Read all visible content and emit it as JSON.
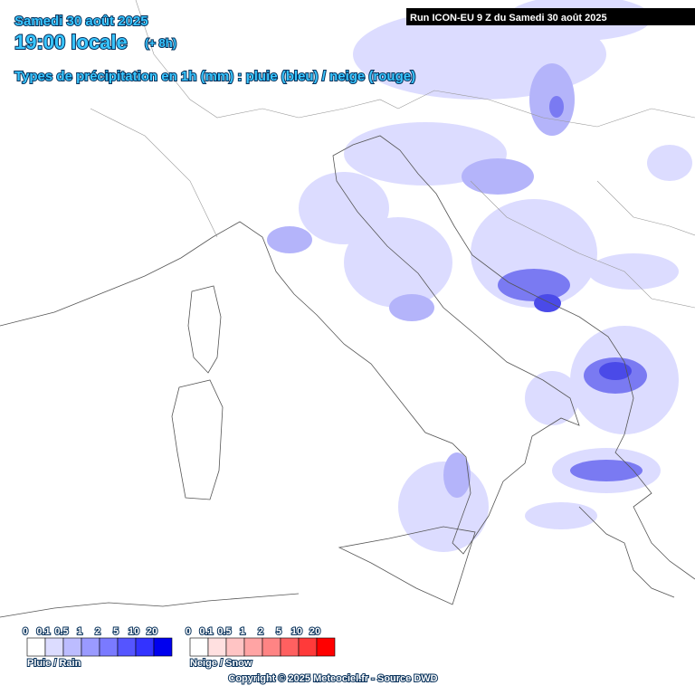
{
  "header": {
    "date": "Samedi 30 août 2025",
    "time": "19:00 locale",
    "offset": "(+ 8h)",
    "subtitle": "Types de précipitation en 1h (mm) : pluie (bleu) / neige (rouge)",
    "run": "Run ICON-EU 9 Z du Samedi 30 août 2025"
  },
  "legend": {
    "rain": {
      "label": "Pluie / Rain",
      "ticks": [
        0,
        0.1,
        0.5,
        1,
        2,
        5,
        10,
        20
      ],
      "colors": [
        "#ffffff",
        "#dcdcff",
        "#bcbcff",
        "#9a9aff",
        "#7a7aff",
        "#5555ff",
        "#3333ff",
        "#0000ee"
      ]
    },
    "snow": {
      "label": "Neige / Snow",
      "ticks": [
        0,
        0.1,
        0.5,
        1,
        2,
        5,
        10,
        20
      ],
      "colors": [
        "#ffffff",
        "#ffe0e0",
        "#ffc4c4",
        "#ffa4a4",
        "#ff8484",
        "#ff6060",
        "#ff3a3a",
        "#ff0000"
      ]
    }
  },
  "footer": {
    "copyright": "Copyright © 2025 Meteociel.fr - Source DWD"
  }
}
